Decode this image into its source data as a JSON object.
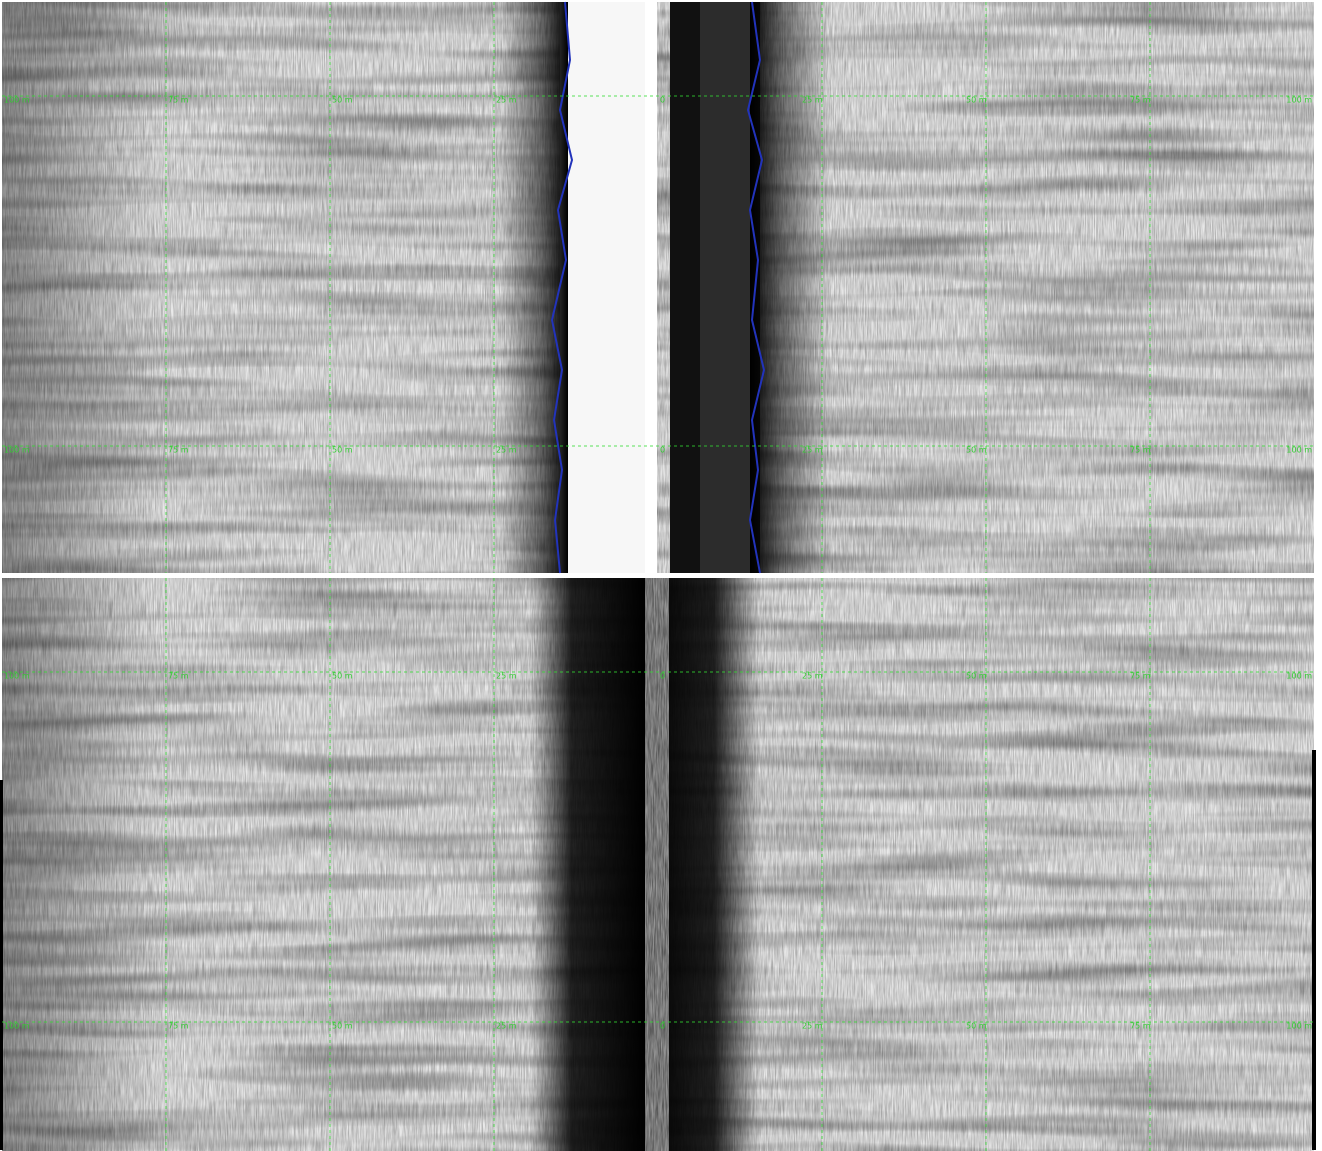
{
  "range_labels": [
    "100 m",
    "75 m",
    "50 m",
    "25 m",
    "0",
    "25 m",
    "50 m",
    "75 m",
    "100 m"
  ]
}
